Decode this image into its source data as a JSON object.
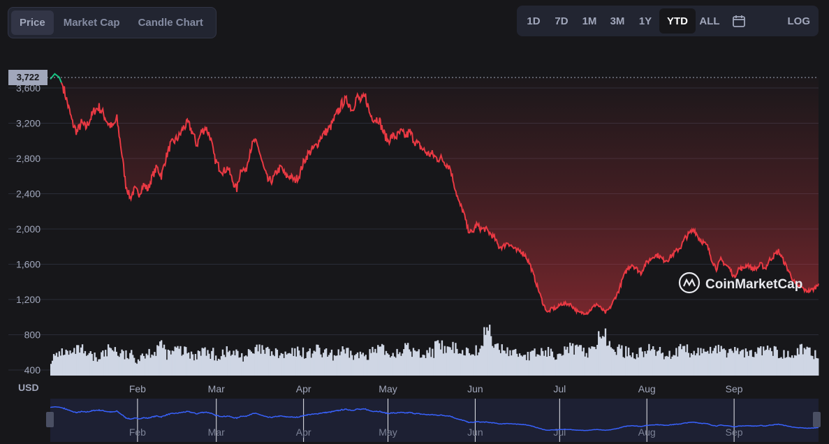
{
  "tabs": [
    {
      "label": "Price",
      "active": true
    },
    {
      "label": "Market Cap",
      "active": false
    },
    {
      "label": "Candle Chart",
      "active": false
    }
  ],
  "ranges": [
    {
      "label": "1D",
      "active": false
    },
    {
      "label": "7D",
      "active": false
    },
    {
      "label": "1M",
      "active": false
    },
    {
      "label": "3M",
      "active": false
    },
    {
      "label": "1Y",
      "active": false
    },
    {
      "label": "YTD",
      "active": true
    },
    {
      "label": "ALL",
      "active": false
    }
  ],
  "calendar_icon": "calendar-icon",
  "log_label": "LOG",
  "watermark": "CoinMarketCap",
  "currency_label": "USD",
  "current_price_label": "3,722",
  "colors": {
    "down": "#ea3943",
    "up": "#16c784",
    "volume": "#cfd6e4",
    "navigator": "#3861fb",
    "grid": "#2a2d38"
  },
  "chart_data": {
    "type": "area",
    "ylabel": "USD",
    "y_ticks": [
      400,
      800,
      1200,
      1600,
      2000,
      2400,
      2800,
      3200,
      3600
    ],
    "ylim": [
      360,
      3900
    ],
    "x_ticks": [
      "Feb",
      "Mar",
      "Apr",
      "May",
      "Jun",
      "Jul",
      "Aug",
      "Sep"
    ],
    "x_tick_days": [
      31,
      59,
      90,
      120,
      151,
      181,
      212,
      243
    ],
    "x_range_days": [
      0,
      273
    ],
    "current_price": 3722,
    "grid": true,
    "series": [
      {
        "values_day_price": [
          [
            0,
            3700
          ],
          [
            1,
            3760
          ],
          [
            2,
            3722
          ],
          [
            3,
            3600
          ],
          [
            4,
            3400
          ],
          [
            5,
            3200
          ],
          [
            6,
            3100
          ],
          [
            7,
            3200
          ],
          [
            8,
            3150
          ],
          [
            9,
            3250
          ],
          [
            10,
            3350
          ],
          [
            11,
            3380
          ],
          [
            12,
            3300
          ],
          [
            13,
            3200
          ],
          [
            14,
            3150
          ],
          [
            15,
            3250
          ],
          [
            16,
            2900
          ],
          [
            17,
            2500
          ],
          [
            18,
            2350
          ],
          [
            19,
            2450
          ],
          [
            20,
            2400
          ],
          [
            21,
            2500
          ],
          [
            22,
            2450
          ],
          [
            23,
            2600
          ],
          [
            24,
            2700
          ],
          [
            25,
            2600
          ],
          [
            26,
            2800
          ],
          [
            27,
            2950
          ],
          [
            28,
            3000
          ],
          [
            29,
            3050
          ],
          [
            30,
            3150
          ],
          [
            31,
            3200
          ],
          [
            32,
            3100
          ],
          [
            33,
            2950
          ],
          [
            34,
            3100
          ],
          [
            35,
            3150
          ],
          [
            36,
            3050
          ],
          [
            37,
            2800
          ],
          [
            38,
            2700
          ],
          [
            39,
            2650
          ],
          [
            40,
            2700
          ],
          [
            41,
            2550
          ],
          [
            42,
            2450
          ],
          [
            43,
            2700
          ],
          [
            44,
            2650
          ],
          [
            45,
            2900
          ],
          [
            46,
            3000
          ],
          [
            47,
            2900
          ],
          [
            48,
            2700
          ],
          [
            49,
            2550
          ],
          [
            50,
            2550
          ],
          [
            51,
            2650
          ],
          [
            52,
            2700
          ],
          [
            53,
            2600
          ],
          [
            54,
            2600
          ],
          [
            55,
            2550
          ],
          [
            56,
            2600
          ],
          [
            57,
            2750
          ],
          [
            58,
            2850
          ],
          [
            59,
            2900
          ],
          [
            60,
            2950
          ],
          [
            61,
            3050
          ],
          [
            62,
            3100
          ],
          [
            63,
            3150
          ],
          [
            64,
            3250
          ],
          [
            65,
            3350
          ],
          [
            66,
            3450
          ],
          [
            67,
            3450
          ],
          [
            68,
            3350
          ],
          [
            69,
            3500
          ],
          [
            70,
            3450
          ],
          [
            71,
            3500
          ],
          [
            72,
            3300
          ],
          [
            73,
            3250
          ],
          [
            74,
            3250
          ],
          [
            75,
            3100
          ],
          [
            76,
            3000
          ],
          [
            77,
            3050
          ],
          [
            78,
            3050
          ],
          [
            79,
            3100
          ],
          [
            80,
            3050
          ],
          [
            81,
            3100
          ],
          [
            82,
            3000
          ],
          [
            83,
            2950
          ],
          [
            84,
            2900
          ],
          [
            85,
            2850
          ],
          [
            86,
            2850
          ],
          [
            87,
            2800
          ],
          [
            88,
            2800
          ],
          [
            89,
            2750
          ],
          [
            90,
            2700
          ],
          [
            91,
            2500
          ],
          [
            92,
            2300
          ],
          [
            93,
            2200
          ],
          [
            94,
            2000
          ],
          [
            95,
            1950
          ],
          [
            96,
            2050
          ],
          [
            97,
            2000
          ],
          [
            98,
            2000
          ],
          [
            99,
            1950
          ],
          [
            100,
            1900
          ],
          [
            101,
            1800
          ],
          [
            102,
            1800
          ],
          [
            103,
            1850
          ],
          [
            104,
            1800
          ],
          [
            105,
            1750
          ],
          [
            106,
            1750
          ],
          [
            107,
            1700
          ],
          [
            108,
            1600
          ],
          [
            109,
            1450
          ],
          [
            110,
            1300
          ],
          [
            111,
            1150
          ],
          [
            112,
            1050
          ],
          [
            113,
            1100
          ],
          [
            114,
            1100
          ],
          [
            115,
            1150
          ],
          [
            116,
            1150
          ],
          [
            117,
            1150
          ],
          [
            118,
            1100
          ],
          [
            119,
            1050
          ],
          [
            120,
            1050
          ],
          [
            121,
            1050
          ],
          [
            122,
            1100
          ],
          [
            123,
            1150
          ],
          [
            124,
            1100
          ],
          [
            125,
            1050
          ],
          [
            126,
            1100
          ],
          [
            127,
            1200
          ],
          [
            128,
            1300
          ],
          [
            129,
            1450
          ],
          [
            130,
            1550
          ],
          [
            131,
            1600
          ],
          [
            132,
            1550
          ],
          [
            133,
            1500
          ],
          [
            134,
            1600
          ],
          [
            135,
            1650
          ],
          [
            136,
            1700
          ],
          [
            137,
            1700
          ],
          [
            138,
            1650
          ],
          [
            139,
            1650
          ],
          [
            140,
            1700
          ],
          [
            141,
            1750
          ],
          [
            142,
            1800
          ],
          [
            143,
            1900
          ],
          [
            144,
            1950
          ],
          [
            145,
            2000
          ],
          [
            146,
            1900
          ],
          [
            147,
            1850
          ],
          [
            148,
            1800
          ],
          [
            149,
            1650
          ],
          [
            150,
            1550
          ],
          [
            151,
            1650
          ],
          [
            152,
            1600
          ],
          [
            153,
            1550
          ],
          [
            154,
            1450
          ],
          [
            155,
            1550
          ],
          [
            156,
            1550
          ],
          [
            157,
            1600
          ],
          [
            158,
            1550
          ],
          [
            159,
            1550
          ],
          [
            160,
            1600
          ],
          [
            161,
            1550
          ],
          [
            162,
            1650
          ],
          [
            163,
            1700
          ],
          [
            164,
            1750
          ],
          [
            165,
            1650
          ],
          [
            166,
            1550
          ],
          [
            167,
            1450
          ],
          [
            168,
            1350
          ],
          [
            169,
            1350
          ],
          [
            170,
            1300
          ],
          [
            171,
            1300
          ],
          [
            172,
            1320
          ],
          [
            173,
            1380
          ]
        ]
      }
    ],
    "volume_relative": [
      0.3,
      0.45,
      0.4,
      0.5,
      0.35,
      0.3,
      0.4,
      0.55,
      0.4,
      0.35,
      0.3,
      0.4,
      0.45,
      0.6,
      0.4,
      0.5,
      0.45,
      0.35,
      0.5,
      0.4,
      0.35,
      0.45,
      0.4,
      0.35,
      0.4,
      0.5,
      0.45,
      0.4,
      0.35,
      0.4,
      0.45,
      0.4,
      0.5,
      0.4,
      0.35,
      0.45,
      0.4,
      0.35,
      0.4,
      0.45,
      0.5,
      0.4,
      0.45,
      0.55,
      0.45,
      0.4,
      0.45,
      0.6,
      0.5,
      0.55,
      0.45,
      0.5,
      0.5,
      1.0,
      0.6,
      0.5,
      0.45,
      0.4,
      0.35,
      0.4,
      0.45,
      0.4,
      0.5,
      0.55,
      0.5,
      0.45,
      0.6,
      0.9,
      0.6,
      0.5,
      0.45,
      0.4,
      0.45,
      0.5,
      0.45,
      0.4,
      0.45,
      0.5,
      0.4,
      0.45,
      0.5,
      0.55,
      0.45,
      0.5,
      0.45,
      0.4,
      0.45,
      0.5,
      0.45,
      0.4,
      0.45,
      0.5,
      0.45,
      0.4
    ]
  }
}
